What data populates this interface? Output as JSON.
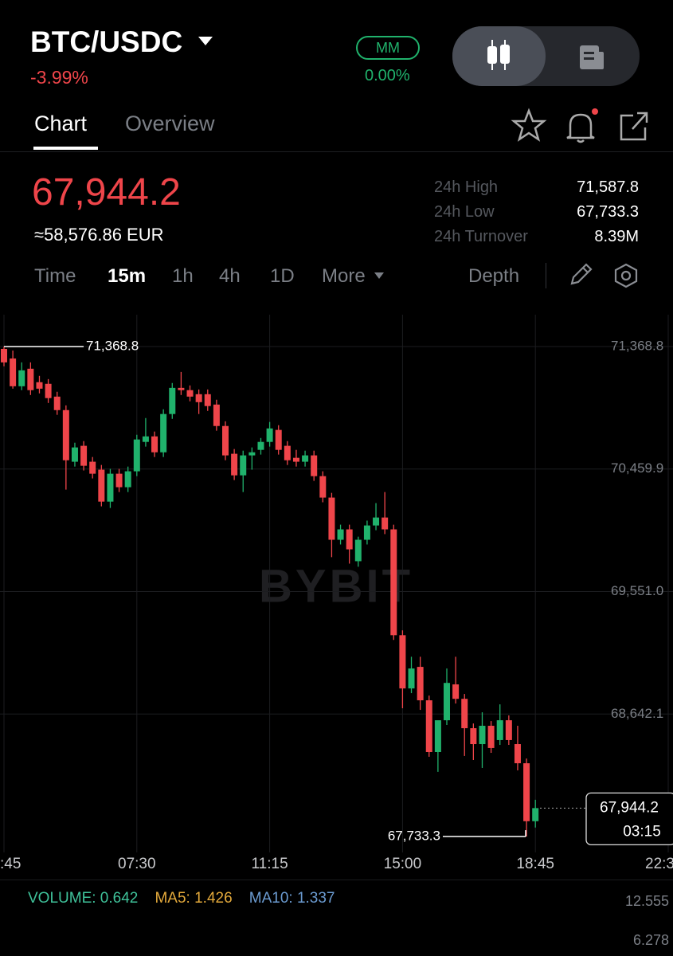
{
  "header": {
    "pair": "BTC/USDC",
    "change": "-3.99%",
    "mm_label": "MM",
    "mm_value": "0.00%"
  },
  "tabs": [
    "Chart",
    "Overview"
  ],
  "ticker": {
    "price": "67,944.2",
    "fiat": "≈58,576.86 EUR",
    "stats": [
      {
        "label": "24h High",
        "value": "71,587.8"
      },
      {
        "label": "24h Low",
        "value": "67,733.3"
      },
      {
        "label": "24h Turnover",
        "value": "8.39M"
      }
    ]
  },
  "intervals": [
    "Time",
    "15m",
    "1h",
    "4h",
    "1D",
    "More"
  ],
  "depth": "Depth",
  "chart_data": {
    "type": "candlestick",
    "watermark": "BYBIT",
    "up_color": "#20b26c",
    "down_color": "#ef454a",
    "grid": true,
    "open": [
      71351,
      71280,
      71074,
      71204,
      71104,
      71092,
      70997,
      70897,
      70514,
      70632,
      70514,
      70455,
      70218,
      70425,
      70325,
      70443,
      70661,
      70702,
      70584,
      70868,
      71062,
      71045,
      71015,
      71015,
      70938,
      70779,
      70573,
      70413,
      70561,
      70602,
      70661,
      70750,
      70632,
      70543,
      70514,
      70561,
      70407,
      70248,
      69935,
      70012,
      69776,
      69935,
      70041,
      70100,
      70012,
      69227,
      68832,
      68992,
      68744,
      68360,
      68596,
      68862,
      68755,
      68537,
      68419,
      68555,
      68449,
      68596,
      68419,
      68277,
      67847
    ],
    "high": [
      71368.8,
      71339,
      71251,
      71251,
      71151,
      71127,
      71033,
      70932,
      70655,
      70667,
      70549,
      70490,
      70461,
      70461,
      70478,
      70714,
      70838,
      70738,
      70903,
      71098,
      71180,
      71080,
      71050,
      71050,
      70974,
      70814,
      70608,
      70596,
      70620,
      70690,
      70809,
      70785,
      70667,
      70602,
      70596,
      70596,
      70443,
      70283,
      70047,
      70047,
      69958,
      70077,
      70207,
      70289,
      70047,
      69263,
      69067,
      69067,
      68779,
      68572,
      68980,
      69067,
      68791,
      68572,
      68655,
      68590,
      68714,
      68632,
      68555,
      68312,
      68006
    ],
    "low": [
      71222,
      71056,
      71045,
      71009,
      71021,
      70950,
      70862,
      70307,
      70478,
      70449,
      70390,
      70183,
      70171,
      70289,
      70289,
      70407,
      70626,
      70549,
      70549,
      70832,
      71009,
      70962,
      70868,
      70891,
      70744,
      70525,
      70378,
      70289,
      70455,
      70567,
      70626,
      70567,
      70490,
      70478,
      70478,
      70372,
      70213,
      69806,
      69900,
      69758,
      69735,
      69900,
      70006,
      69977,
      69192,
      68685,
      68797,
      68673,
      68325,
      68213,
      68561,
      68720,
      68331,
      68301,
      68242,
      68354,
      68413,
      68413,
      68224,
      67733.3,
      67800
    ],
    "close": [
      71251,
      71074,
      71192,
      71045,
      71056,
      70986,
      70897,
      70525,
      70620,
      70484,
      70425,
      70218,
      70425,
      70325,
      70443,
      70679,
      70702,
      70584,
      70868,
      71062,
      71045,
      70997,
      70956,
      70927,
      70779,
      70561,
      70413,
      70561,
      70584,
      70661,
      70761,
      70602,
      70525,
      70514,
      70561,
      70407,
      70248,
      69935,
      70012,
      69864,
      69935,
      70041,
      70100,
      70012,
      69227,
      68832,
      68980,
      68744,
      68360,
      68596,
      68873,
      68755,
      68537,
      68419,
      68555,
      68390,
      68596,
      68449,
      68277,
      67847,
      67944.2
    ],
    "ylim": [
      67615.3,
      71604.9
    ],
    "yticks": [
      {
        "value": 71368.8,
        "label": "71,368.8"
      },
      {
        "value": 70459.9,
        "label": "70,459.9"
      },
      {
        "value": 69551.0,
        "label": "69,551.0"
      },
      {
        "value": 68642.1,
        "label": "68,642.1"
      }
    ],
    "xticks": [
      {
        "value": 0,
        "label": ":45"
      },
      {
        "value": 15,
        "label": "07:30"
      },
      {
        "value": 30,
        "label": "11:15"
      },
      {
        "value": 45,
        "label": "15:00"
      },
      {
        "value": 60,
        "label": "18:45"
      },
      {
        "value": 75,
        "label": "22:3"
      }
    ],
    "high_marker": {
      "value": 71368.8,
      "label": "71,368.8"
    },
    "low_marker": {
      "value": 67733.3,
      "label": "67,733.3"
    },
    "last_price": {
      "value": 67944.2,
      "label": "67,944.2"
    },
    "countdown": "03:15"
  },
  "volume_panel": {
    "indicators": [
      {
        "text": "VOLUME: 0.642",
        "color": "#3fc29a"
      },
      {
        "text": "MA5: 1.426",
        "color": "#e3a93b"
      },
      {
        "text": "MA10: 1.337",
        "color": "#6b9bd1"
      }
    ],
    "axis_labels": [
      "12.555",
      "6.278"
    ]
  }
}
